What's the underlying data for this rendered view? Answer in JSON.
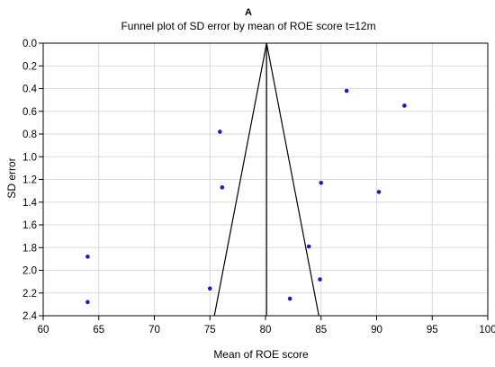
{
  "chart_data": {
    "type": "scatter",
    "panel_label": "A",
    "title": "Funnel plot of SD error by mean of ROE score t=12m",
    "xlabel": "Mean of ROE score",
    "ylabel": "SD error",
    "xlim": [
      60,
      100
    ],
    "ylim": [
      0.0,
      2.4
    ],
    "y_reversed": true,
    "grid": true,
    "x_ticks": [
      "60",
      "65",
      "70",
      "75",
      "80",
      "85",
      "90",
      "95",
      "100"
    ],
    "y_ticks": [
      "0.0",
      "0.2",
      "0.4",
      "0.6",
      "0.8",
      "1.0",
      "1.2",
      "1.4",
      "1.6",
      "1.8",
      "2.0",
      "2.2",
      "2.4"
    ],
    "point_color": "#1a1acc",
    "funnel": {
      "apex": [
        80.1,
        0.0
      ],
      "left_base": [
        75.4,
        2.4
      ],
      "right_base": [
        84.8,
        2.4
      ],
      "center_line_x": 80.1
    },
    "points": [
      {
        "x": 87.3,
        "y": 0.42
      },
      {
        "x": 92.5,
        "y": 0.55
      },
      {
        "x": 75.9,
        "y": 0.78
      },
      {
        "x": 76.1,
        "y": 1.27
      },
      {
        "x": 85.0,
        "y": 1.23
      },
      {
        "x": 90.2,
        "y": 1.31
      },
      {
        "x": 83.9,
        "y": 1.79
      },
      {
        "x": 64.0,
        "y": 1.88
      },
      {
        "x": 84.9,
        "y": 2.08
      },
      {
        "x": 75.0,
        "y": 2.16
      },
      {
        "x": 82.2,
        "y": 2.25
      },
      {
        "x": 64.0,
        "y": 2.28
      }
    ]
  }
}
